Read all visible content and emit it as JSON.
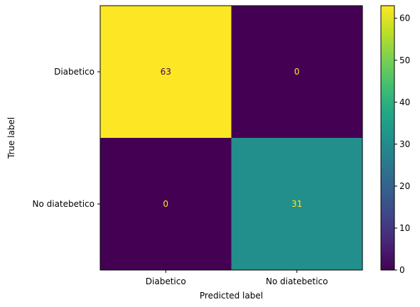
{
  "chart_data": {
    "type": "heatmap",
    "title": "",
    "xlabel": "Predicted label",
    "ylabel": "True label",
    "x_categories": [
      "Diabetico",
      "No diatebetico"
    ],
    "y_categories": [
      "Diabetico",
      "No diatebetico"
    ],
    "values": [
      [
        63,
        0
      ],
      [
        0,
        31
      ]
    ],
    "colormap": "viridis",
    "colorbar": {
      "range": [
        0,
        63
      ],
      "ticks": [
        0,
        10,
        20,
        30,
        40,
        50,
        60
      ]
    },
    "grid": false
  },
  "colors": {
    "high": "#fde725",
    "low": "#440154",
    "text_on_dark": "#fde725",
    "text_on_light": "#440154"
  }
}
